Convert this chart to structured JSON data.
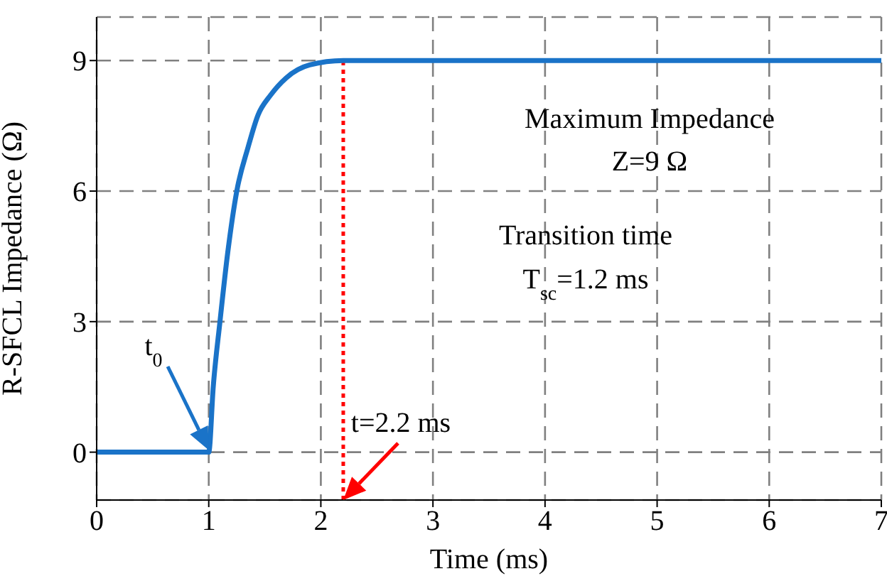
{
  "chart_data": {
    "type": "line",
    "xlabel": "Time (ms)",
    "ylabel": "R-SFCL Impedance (Ω)",
    "x": [
      0,
      1,
      1.04,
      1.1,
      1.17,
      1.25,
      1.35,
      1.44,
      1.55,
      1.69,
      1.9,
      2.2,
      7
    ],
    "series": [
      {
        "color": "#1a73c8",
        "values": [
          0,
          0,
          1.5,
          3,
          4.6,
          6,
          7,
          7.75,
          8.2,
          8.6,
          8.9,
          9,
          9
        ]
      }
    ],
    "xlim": [
      0,
      7
    ],
    "xticks": [
      0,
      1,
      2,
      3,
      4,
      5,
      6,
      7
    ],
    "ylim": [
      -1.1,
      10
    ],
    "yticks": [
      0,
      3,
      6,
      9
    ],
    "grid": true,
    "line_style": "solid",
    "marker": "none",
    "ref_lines": [
      {
        "axis": "x",
        "value": 2.2,
        "color": "#ff0000",
        "line_style": "dotted"
      }
    ],
    "annotations": [
      "t$_{0}$",
      {
        "text": "t=2.2 ms",
        "x": 2.2,
        "y": -1.1
      },
      "Maximum Impedance",
      "Z=9 Ω",
      "Transition time",
      "T$_{sc}$=1.2 ms"
    ]
  }
}
